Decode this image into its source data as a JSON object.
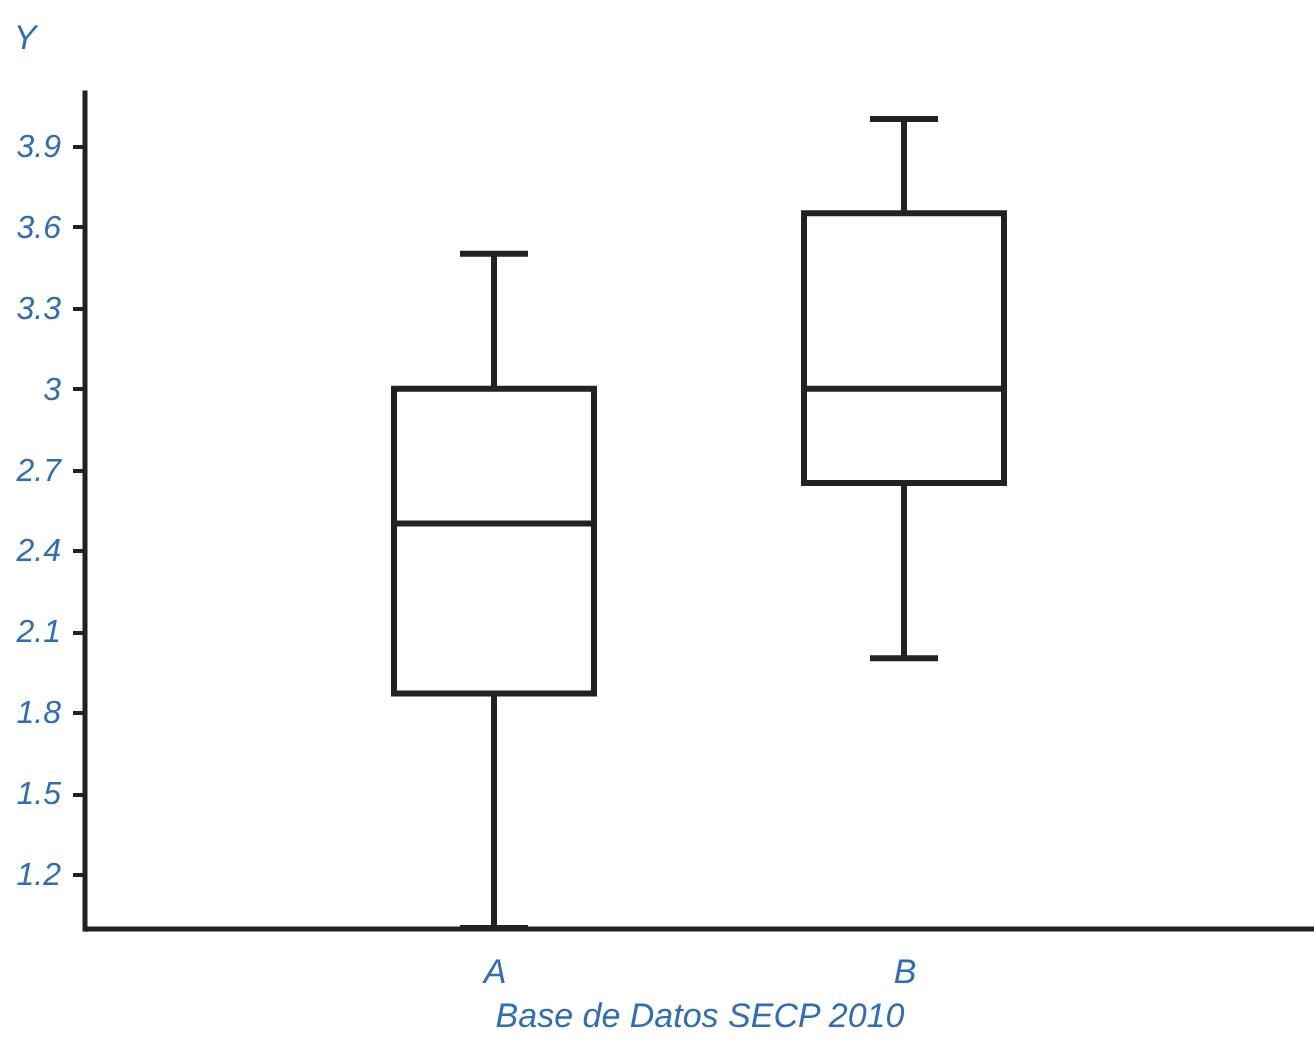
{
  "chart_data": {
    "type": "box",
    "xlabel": "Base de Datos SECP 2010",
    "ylabel": "Y",
    "categories": [
      "A",
      "B"
    ],
    "boxes": [
      {
        "low": 1.0,
        "q1": 1.87,
        "median": 2.5,
        "q3": 3.0,
        "high": 3.5
      },
      {
        "low": 2.0,
        "q1": 2.65,
        "median": 3.0,
        "q3": 3.65,
        "high": 4.0
      }
    ],
    "ylim": [
      1.0,
      4.1
    ],
    "yticks": [
      1.2,
      1.5,
      1.8,
      2.1,
      2.4,
      2.7,
      {
        "value": 3,
        "label": "3"
      },
      3.3,
      3.6,
      3.9
    ],
    "grid": false
  }
}
